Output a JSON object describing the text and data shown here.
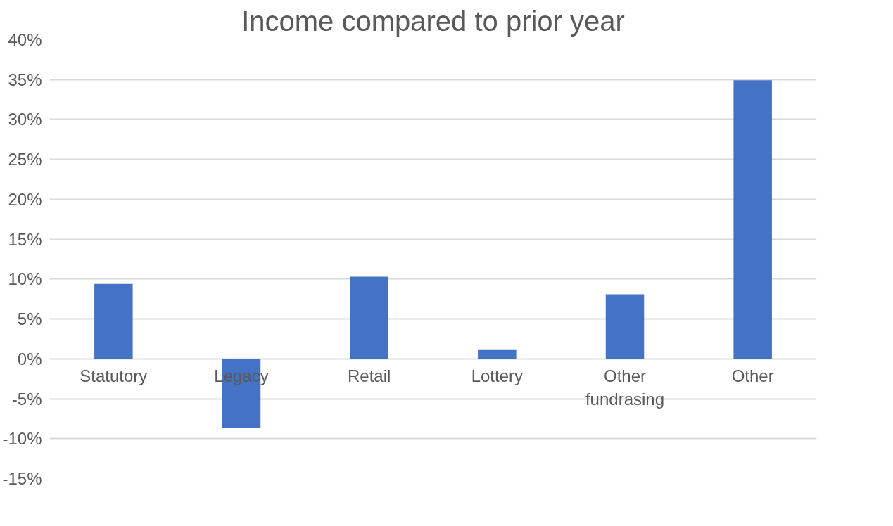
{
  "chart_data": {
    "type": "bar",
    "title": "Income compared to prior year",
    "categories": [
      "Statutory",
      "Legacy",
      "Retail",
      "Lottery",
      "Other fundrasing",
      "Other"
    ],
    "values": [
      9.4,
      -8.6,
      10.3,
      1.1,
      8.1,
      34.9
    ],
    "color": "#4472c4",
    "ylim": [
      -15,
      40
    ],
    "yticks": [
      {
        "value": -15,
        "label": "-15%"
      },
      {
        "value": -10,
        "label": "-10%"
      },
      {
        "value": -5,
        "label": "-5%"
      },
      {
        "value": 0,
        "label": "0%"
      },
      {
        "value": 5,
        "label": "5%"
      },
      {
        "value": 10,
        "label": "10%"
      },
      {
        "value": 15,
        "label": "15%"
      },
      {
        "value": 20,
        "label": "20%"
      },
      {
        "value": 25,
        "label": "25%"
      },
      {
        "value": 30,
        "label": "30%"
      },
      {
        "value": 35,
        "label": "35%"
      },
      {
        "value": 40,
        "label": "40%"
      }
    ],
    "grid": "y"
  }
}
